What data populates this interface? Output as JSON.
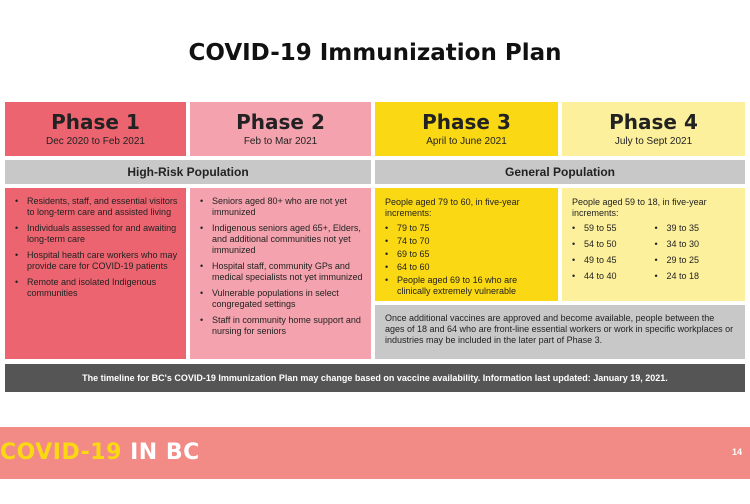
{
  "title": "COVID-19 Immunization Plan",
  "phases": [
    {
      "name": "Phase 1",
      "dates": "Dec 2020 to Feb 2021",
      "color": "#ec6470"
    },
    {
      "name": "Phase 2",
      "dates": "Feb to Mar 2021",
      "color": "#f4a3ae"
    },
    {
      "name": "Phase 3",
      "dates": "April to June 2021",
      "color": "#fad814"
    },
    {
      "name": "Phase 4",
      "dates": "July to Sept 2021",
      "color": "#fcf09c"
    }
  ],
  "groups": {
    "high_risk": "High-Risk Population",
    "general": "General Population"
  },
  "phase1_items": [
    "Residents, staff, and essential visitors to long-term care and assisted living",
    "Individuals assessed for and awaiting long-term care",
    "Hospital heath care workers who may provide care for COVID-19 patients",
    "Remote and isolated Indigenous communities"
  ],
  "phase2_items": [
    "Seniors aged 80+ who are not yet immunized",
    "Indigenous seniors aged 65+, Elders, and additional communities not yet immunized",
    "Hospital staff, community GPs and medical specialists not yet immunized",
    "Vulnerable populations in select congregated settings",
    "Staff in community home support and nursing for seniors"
  ],
  "phase3": {
    "intro": "People aged 79 to 60, in five-year increments:",
    "items": [
      "79 to 75",
      "74 to 70",
      "69 to 65",
      "64 to 60",
      "People aged 69 to 16 who are clinically extremely vulnerable"
    ]
  },
  "phase4": {
    "intro": "People aged 59 to 18, in five-year increments:",
    "col1": [
      "59 to 55",
      "54 to 50",
      "49 to 45",
      "44 to 40"
    ],
    "col2": [
      "39 to 35",
      "34 to 30",
      "29 to 25",
      "24 to 18"
    ]
  },
  "later_note": "Once additional vaccines are approved and become available, people between the ages of 18 and 64 who are front-line essential workers or work in specific workplaces or industries may be included in the later part of Phase 3.",
  "footer_note": "The timeline for BC's COVID-19 Immunization Plan may change based on vaccine availability. Information last updated: January 19, 2021.",
  "brand": {
    "word1": "COVID-19",
    "word2": "IN BC"
  },
  "page_number": "14"
}
